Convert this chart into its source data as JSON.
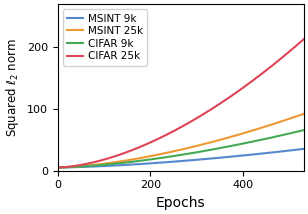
{
  "title": "",
  "xlabel": "Epochs",
  "ylabel": "Squared $\\ell_2$ norm",
  "xlim": [
    0,
    530
  ],
  "ylim": [
    0,
    270
  ],
  "yticks": [
    0,
    100,
    200
  ],
  "xticks": [
    0,
    200,
    400
  ],
  "series": [
    {
      "label": "MSINT 9k",
      "color": "#5588cc",
      "exponent": 1.55,
      "scale": 0.0018
    },
    {
      "label": "MSINT 25k",
      "color": "#ee9933",
      "exponent": 1.6,
      "scale": 0.0038
    },
    {
      "label": "CIFAR 9k",
      "color": "#44aa55",
      "exponent": 1.58,
      "scale": 0.003
    },
    {
      "label": "CIFAR 25k",
      "color": "#dd4455",
      "exponent": 1.68,
      "scale": 0.0055
    }
  ],
  "legend_loc": "upper left",
  "legend_fontsize": 7.5,
  "xlabel_fontsize": 10,
  "ylabel_fontsize": 8.5,
  "tick_fontsize": 8
}
